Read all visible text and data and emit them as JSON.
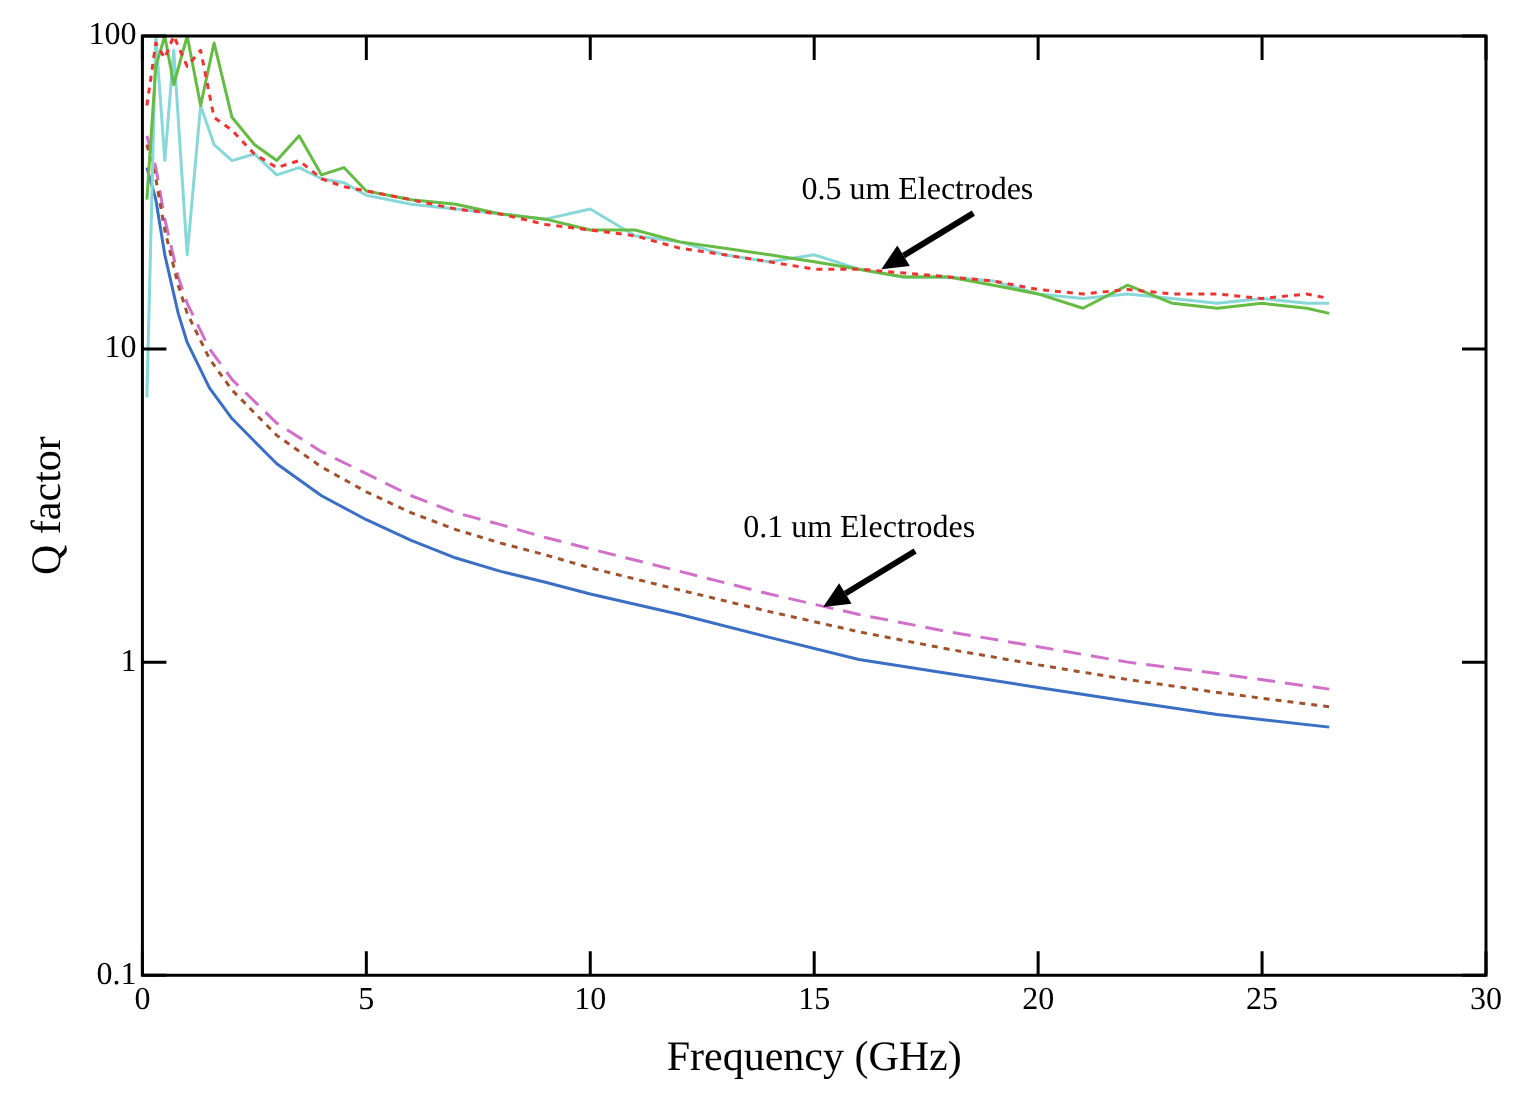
{
  "chart_data": {
    "type": "line",
    "xlabel": "Frequency (GHz)",
    "ylabel": "Q factor",
    "log": "y",
    "grid": false,
    "legend": false,
    "marker": "none",
    "xlim": [
      0,
      30
    ],
    "xticks": [
      0,
      5,
      10,
      15,
      20,
      25,
      30
    ],
    "ylim": [
      0.1,
      100
    ],
    "yticks": [
      0.1,
      1,
      10,
      100
    ],
    "annotations": [
      {
        "text": "0.5 um Electrodes",
        "x": 16.5,
        "y": 18
      },
      {
        "text": "0.1 um Electrodes",
        "x": 15.2,
        "y": 1.5
      }
    ],
    "series": [
      {
        "color": "#ee3333",
        "line_style": "dotted",
        "x": [
          0.1,
          0.3,
          0.5,
          0.7,
          1,
          1.3,
          1.6,
          2,
          2.5,
          3,
          3.5,
          4,
          4.5,
          5,
          6,
          7,
          8,
          9,
          10,
          11,
          12,
          13,
          14,
          15,
          16,
          17,
          18,
          19,
          20,
          21,
          22,
          23,
          24,
          25,
          26,
          26.5
        ],
        "values": [
          60,
          95,
          85,
          100,
          80,
          90,
          55,
          50,
          42,
          38,
          40,
          35,
          33,
          32,
          30,
          28,
          27,
          25,
          24,
          23,
          21,
          20,
          19,
          18,
          18,
          17.5,
          17,
          16.5,
          15.5,
          15,
          15.5,
          15,
          15,
          14.5,
          15,
          14.5
        ]
      },
      {
        "color": "#66bb44",
        "line_style": "solid",
        "x": [
          0.1,
          0.3,
          0.5,
          0.7,
          1,
          1.3,
          1.6,
          2,
          2.5,
          3,
          3.5,
          4,
          4.5,
          5,
          6,
          7,
          8,
          9,
          10,
          11,
          12,
          13,
          14,
          15,
          16,
          17,
          18,
          19,
          20,
          21,
          22,
          23,
          24,
          25,
          26,
          26.5
        ],
        "values": [
          30,
          80,
          100,
          70,
          100,
          60,
          95,
          55,
          45,
          40,
          48,
          36,
          38,
          32,
          30,
          29,
          27,
          26,
          24,
          24,
          22,
          21,
          20,
          19,
          18,
          17,
          17,
          16,
          15,
          13.5,
          16,
          14,
          13.5,
          14,
          13.5,
          13
        ]
      },
      {
        "color": "#88d8d8",
        "line_style": "solid",
        "x": [
          0.1,
          0.3,
          0.5,
          0.7,
          1,
          1.3,
          1.6,
          2,
          2.5,
          3,
          3.5,
          4,
          4.5,
          5,
          6,
          7,
          8,
          9,
          10,
          11,
          12,
          13,
          14,
          15,
          16,
          17,
          18,
          19,
          20,
          21,
          22,
          23,
          24,
          25,
          26,
          26.5
        ],
        "values": [
          7,
          100,
          40,
          90,
          20,
          60,
          45,
          40,
          42,
          36,
          38,
          35,
          34,
          31,
          29,
          28,
          27,
          26,
          28,
          23,
          22,
          20,
          19,
          20,
          18,
          17,
          17,
          16.5,
          15,
          14.5,
          15,
          14.5,
          14,
          14.5,
          14,
          14
        ]
      },
      {
        "color": "#3a6fc4",
        "line_style": "solid",
        "x": [
          0.1,
          0.3,
          0.5,
          0.8,
          1,
          1.5,
          2,
          3,
          4,
          5,
          6,
          7,
          8,
          9,
          10,
          12,
          14,
          16,
          18,
          20,
          22,
          24,
          26.5
        ],
        "values": [
          38,
          30,
          20,
          13,
          10.5,
          7.5,
          6,
          4.3,
          3.4,
          2.85,
          2.45,
          2.15,
          1.95,
          1.8,
          1.65,
          1.42,
          1.2,
          1.02,
          0.92,
          0.83,
          0.75,
          0.68,
          0.62
        ]
      },
      {
        "color": "#a0522d",
        "line_style": "dotted",
        "x": [
          0.1,
          0.3,
          0.5,
          0.8,
          1,
          1.5,
          2,
          3,
          4,
          5,
          6,
          7,
          8,
          9,
          10,
          12,
          14,
          16,
          18,
          20,
          22,
          24,
          26.5
        ],
        "values": [
          45,
          35,
          24,
          16,
          13,
          9.3,
          7.4,
          5.3,
          4.2,
          3.5,
          3,
          2.65,
          2.4,
          2.2,
          2,
          1.7,
          1.45,
          1.25,
          1.1,
          0.98,
          0.88,
          0.8,
          0.72
        ]
      },
      {
        "color": "#d070c8",
        "line_style": "dashed",
        "x": [
          0.1,
          0.3,
          0.5,
          0.8,
          1,
          1.5,
          2,
          3,
          4,
          5,
          6,
          7,
          8,
          9,
          10,
          12,
          14,
          16,
          18,
          20,
          22,
          24,
          26.5
        ],
        "values": [
          48,
          38,
          26,
          17,
          14,
          10,
          8,
          5.8,
          4.7,
          4,
          3.4,
          3,
          2.75,
          2.5,
          2.3,
          1.95,
          1.65,
          1.42,
          1.25,
          1.12,
          1,
          0.92,
          0.82
        ]
      }
    ]
  }
}
